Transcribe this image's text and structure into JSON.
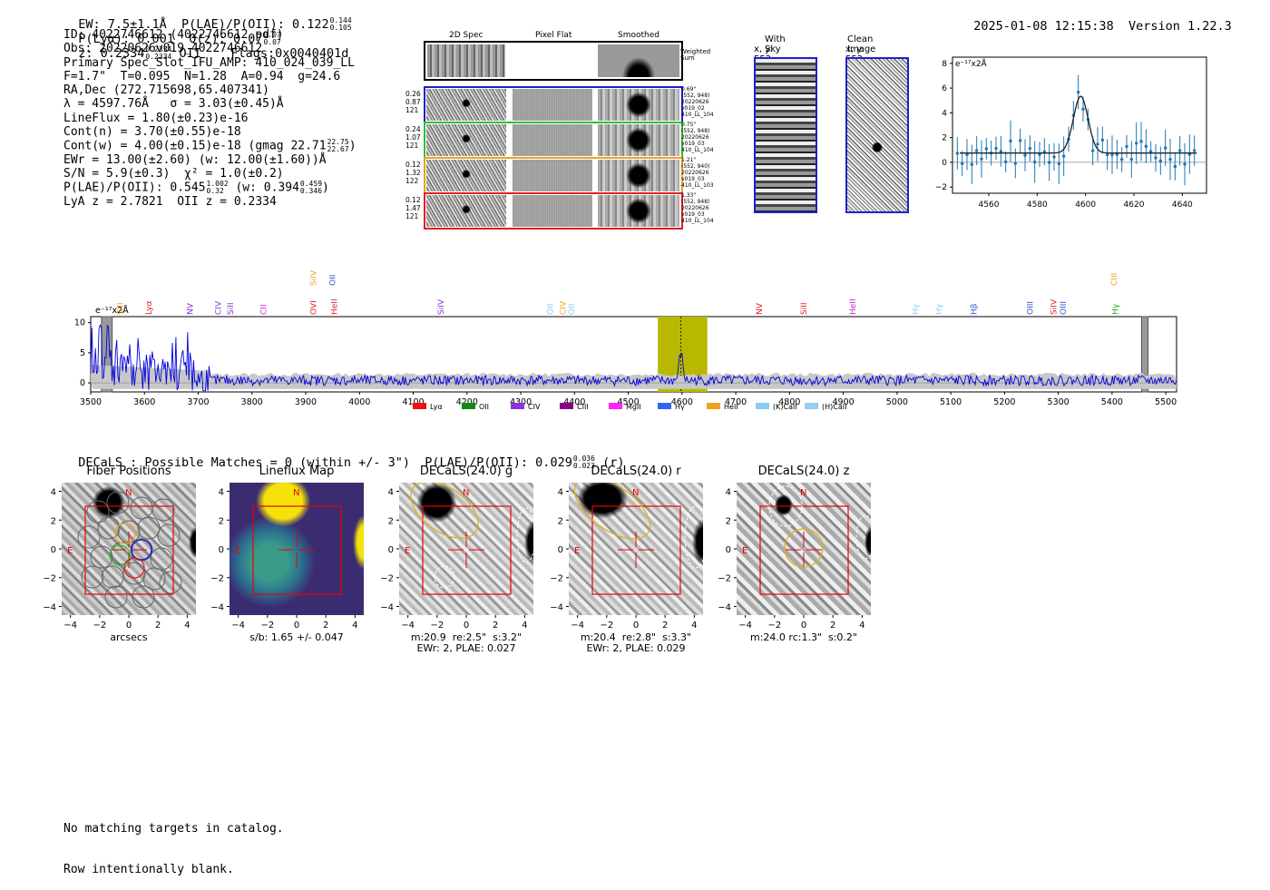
{
  "header": {
    "summary": "EW: 7.5±1.1Å  P(LAE)/P(OII): 0.122",
    "plae_hi": "0.144",
    "plae_lo": "0.105",
    "plya": "P(Lyα): 0.001",
    "qz": "Q(z): 0.07",
    "qz_hi": "0.07",
    "qz_lo": "0.07",
    "z": "z: 0.2334",
    "z_hi": "0.2334",
    "z_lo": "0.2334",
    "z_line": "OII",
    "flags": "Flags:0x0040401d",
    "timestamp": "2025-01-08 12:15:38",
    "version": "Version 1.22.3"
  },
  "info": {
    "id": "ID: 4022746612 (4022746612.pdf)",
    "obs": "Obs: 20220626v019_4022746612",
    "primary": "Primary Spec_Slot_IFU_AMP: 410_024_039_LL",
    "params": "F=1.7\"  T=0.095  N=1.28  A=0.94  g=24.6",
    "radec": "RA,Dec (272.715698,65.407341)",
    "lambda": "λ = 4597.76Å   σ = 3.03(±0.45)Å",
    "lineflux": "LineFlux = 1.80(±0.23)e-16",
    "cont_n": "Cont(n) = 3.70(±0.55)e-18",
    "cont_w": "Cont(w) = 4.00(±0.15)e-18 (gmag 22.71",
    "gmag_hi": "22.75",
    "gmag_lo": "22.67",
    "cont_w_end": ")",
    "ewr": "EWr = 13.00(±2.60) (w: 12.00(±1.60))Å",
    "sn": "S/N = 5.9(±0.3)  χ² = 1.0(±0.2)",
    "plae": "P(LAE)/P(OII): 0.545",
    "plae_hi": "1.002",
    "plae_lo": "0.32",
    "plae_w": "(w: 0.394",
    "plae_w_hi": "0.459",
    "plae_w_lo": "0.346",
    "plae_w_end": ")",
    "lya_z": "LyA z = 2.7821  OII z = 0.2334"
  },
  "cutouts": {
    "col_headers": [
      "2D Spec",
      "Pixel Flat",
      "Smoothed"
    ],
    "weighted_label": "Weighted\nSum",
    "rows": [
      {
        "left": "0.26\n0.87\n121",
        "right": "0.69\"\n(552, 948)\n20220626\nv019_02\n410_LL_104",
        "color": "#1f1fd0"
      },
      {
        "left": "0.24\n1.07\n121",
        "right": "0.75\"\n(552, 948)\n20220626\nv019_03\n410_LL_104",
        "color": "#2fc02f"
      },
      {
        "left": "0.12\n1.32\n122",
        "right": "1.21\"\n(552, 940)\n20220626\nv019_03\n410_LL_103",
        "color": "#f0a020"
      },
      {
        "left": "0.12\n1.47\n121",
        "right": "1.33\"\n(552, 948)\n20220626\nv019_03\n410_LL_104",
        "color": "#e02020"
      }
    ],
    "sky_title": "With Sky",
    "sky_coords": "x, y: 552, 948",
    "clean_title": "Clean Image",
    "clean_coords": "x, y: 552, 948"
  },
  "zoom_plot": {
    "unit_label": "e⁻¹⁷x2Å",
    "yticks": [
      "8",
      "6",
      "4",
      "2",
      "0",
      "−2"
    ],
    "xticks": [
      "4560",
      "4580",
      "4600",
      "4620",
      "4640"
    ],
    "color": "#1f77b4"
  },
  "chart_data": {
    "type": "line",
    "title": "",
    "ylabel": "e⁻¹⁷x2Å",
    "xlim": [
      3500,
      5520
    ],
    "ylim": [
      -1.5,
      11
    ],
    "xticks": [
      "3500",
      "3600",
      "3700",
      "3800",
      "3900",
      "4000",
      "4100",
      "4200",
      "4300",
      "4400",
      "4500",
      "4600",
      "4700",
      "4800",
      "4900",
      "5000",
      "5100",
      "5200",
      "5300",
      "5400",
      "5500"
    ],
    "yticks": [
      "10",
      "5",
      "0"
    ],
    "highlight_range": [
      4555,
      4647
    ],
    "line_center": 4598,
    "masked_ranges": [
      [
        3520,
        3540
      ],
      [
        5455,
        5467
      ]
    ],
    "series_color": "#0000dd",
    "line_markers": [
      {
        "label": "SiII",
        "color": "#f0a020",
        "x": 3553,
        "row": 2
      },
      {
        "label": "Lyα",
        "color": "#dd2222",
        "x": 3606,
        "row": 2
      },
      {
        "label": "NV",
        "color": "#8833dd",
        "x": 3683,
        "row": 2
      },
      {
        "label": "CIV",
        "color": "#8833dd",
        "x": 3735,
        "row": 2
      },
      {
        "label": "SiII",
        "color": "#8833dd",
        "x": 3758,
        "row": 2
      },
      {
        "label": "CII",
        "color": "#cc22cc",
        "x": 3820,
        "row": 2
      },
      {
        "label": "SiIV",
        "color": "#f0a020",
        "x": 3913,
        "row": 1
      },
      {
        "label": "OII",
        "color": "#3355cc",
        "x": 3948,
        "row": 1
      },
      {
        "label": "OVI",
        "color": "#dd2222",
        "x": 3913,
        "row": 2
      },
      {
        "label": "HeII",
        "color": "#dd2222",
        "x": 3951,
        "row": 2
      },
      {
        "label": "SiIV",
        "color": "#8833dd",
        "x": 4150,
        "row": 2
      },
      {
        "label": "OII",
        "color": "#88ccee",
        "x": 4353,
        "row": 2
      },
      {
        "label": "CIV",
        "color": "#f0a020",
        "x": 4377,
        "row": 2
      },
      {
        "label": "OII",
        "color": "#88ccee",
        "x": 4393,
        "row": 2
      },
      {
        "label": "NV",
        "color": "#dd2222",
        "x": 4742,
        "row": 2
      },
      {
        "label": "SiII",
        "color": "#dd2222",
        "x": 4825,
        "row": 2
      },
      {
        "label": "HeII",
        "color": "#cc22cc",
        "x": 4916,
        "row": 2
      },
      {
        "label": "Hγ",
        "color": "#88ccee",
        "x": 5032,
        "row": 2
      },
      {
        "label": "Hγ",
        "color": "#88ccee",
        "x": 5076,
        "row": 2
      },
      {
        "label": "Hβ",
        "color": "#3355cc",
        "x": 5141,
        "row": 2
      },
      {
        "label": "OIII",
        "color": "#3355cc",
        "x": 5246,
        "row": 2
      },
      {
        "label": "SiIV",
        "color": "#dd2222",
        "x": 5290,
        "row": 2
      },
      {
        "label": "OIII",
        "color": "#3355cc",
        "x": 5307,
        "row": 2
      },
      {
        "label": "CIII",
        "color": "#f0a020",
        "x": 5402,
        "row": 1
      },
      {
        "label": "Hγ",
        "color": "#22aa22",
        "x": 5404,
        "row": 2
      }
    ],
    "legend": [
      {
        "label": "Lyα",
        "color": "#ee1111"
      },
      {
        "label": "OII",
        "color": "#118811"
      },
      {
        "label": "CIV",
        "color": "#8833dd"
      },
      {
        "label": "CIII",
        "color": "#880088"
      },
      {
        "label": "MgII",
        "color": "#ff22ff"
      },
      {
        "label": "Hγ",
        "color": "#3366ee"
      },
      {
        "label": "HeII",
        "color": "#f0a020"
      },
      {
        "label": "(K)CaII",
        "color": "#88ccee"
      },
      {
        "label": "(H)CaII",
        "color": "#99ccee"
      }
    ]
  },
  "decals": {
    "headline": "DECaLS : Possible Matches = 0 (within +/- 3\")  P(LAE)/P(OII): 0.029",
    "headline_hi": "0.036",
    "headline_lo": "0.023",
    "headline_band": "(r)",
    "axis_ticks": [
      "−4",
      "−2",
      "0",
      "2",
      "4"
    ],
    "yticks": [
      "4",
      "2",
      "0",
      "−2",
      "−4"
    ],
    "north_label": "N",
    "east_label": "E",
    "panels": [
      {
        "title": "Fiber Positions",
        "note": "arcsecs"
      },
      {
        "title": "Lineflux Map",
        "note": "s/b: 1.65 +/- 0.047"
      },
      {
        "title": "DECaLS(24.0) g",
        "note": "m:20.9  re:2.5\"  s:3.2\"\nEWr: 2, PLAE: 0.027"
      },
      {
        "title": "DECaLS(24.0) r",
        "note": "m:20.4  re:2.8\"  s:3.3\"\nEWr: 2, PLAE: 0.029"
      },
      {
        "title": "DECaLS(24.0) z",
        "note": "m:24.0 rc:1.3\"  s:0.2\""
      }
    ]
  },
  "footer": {
    "line1": "No matching targets in catalog.",
    "line2": "Row intentionally blank."
  }
}
